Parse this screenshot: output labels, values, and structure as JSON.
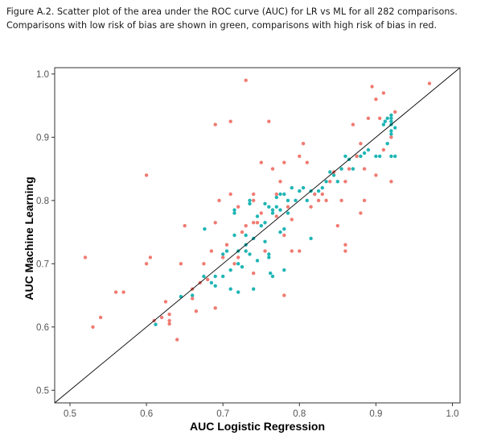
{
  "caption": {
    "line1": "Figure A.2. Scatter plot of the area under the ROC curve (AUC) for LR vs ML for all 282 comparisons.",
    "line2": "Comparisons with low risk of bias are shown in green, comparisons with high risk of bias in red."
  },
  "colors": {
    "low_risk": "#1fb5b5",
    "high_risk": "#f07b72",
    "diagonal": "#000000",
    "frame": "#333333"
  },
  "chart_data": {
    "type": "scatter",
    "xlabel": "AUC Logistic Regression",
    "ylabel": "AUC Machine Learning",
    "xlim": [
      0.48,
      1.01
    ],
    "ylim": [
      0.48,
      1.01
    ],
    "xticks": [
      0.5,
      0.6,
      0.7,
      0.8,
      0.9,
      1.0
    ],
    "xtick_labels": [
      "0.5",
      "0.6",
      "0.7",
      "0.8",
      "0.9",
      "1.0"
    ],
    "yticks": [
      0.5,
      0.6,
      0.7,
      0.8,
      0.9,
      1.0
    ],
    "ytick_labels": [
      "0.5",
      "0.6",
      "0.7",
      "0.8",
      "0.9",
      "1.0"
    ],
    "grid": false,
    "reference_line": "y = x",
    "series": [
      {
        "name": "Low risk of bias",
        "color": "#1fb5b5",
        "points": [
          [
            0.612,
            0.604
          ],
          [
            0.645,
            0.648
          ],
          [
            0.66,
            0.65
          ],
          [
            0.675,
            0.68
          ],
          [
            0.676,
            0.755
          ],
          [
            0.685,
            0.67
          ],
          [
            0.69,
            0.665
          ],
          [
            0.69,
            0.68
          ],
          [
            0.7,
            0.68
          ],
          [
            0.7,
            0.715
          ],
          [
            0.705,
            0.72
          ],
          [
            0.71,
            0.66
          ],
          [
            0.71,
            0.69
          ],
          [
            0.715,
            0.745
          ],
          [
            0.715,
            0.78
          ],
          [
            0.715,
            0.785
          ],
          [
            0.72,
            0.7
          ],
          [
            0.72,
            0.72
          ],
          [
            0.72,
            0.655
          ],
          [
            0.725,
            0.695
          ],
          [
            0.73,
            0.73
          ],
          [
            0.73,
            0.745
          ],
          [
            0.73,
            0.72
          ],
          [
            0.735,
            0.715
          ],
          [
            0.735,
            0.8
          ],
          [
            0.735,
            0.795
          ],
          [
            0.74,
            0.74
          ],
          [
            0.74,
            0.66
          ],
          [
            0.745,
            0.705
          ],
          [
            0.745,
            0.775
          ],
          [
            0.75,
            0.76
          ],
          [
            0.755,
            0.735
          ],
          [
            0.755,
            0.765
          ],
          [
            0.755,
            0.795
          ],
          [
            0.76,
            0.79
          ],
          [
            0.76,
            0.71
          ],
          [
            0.76,
            0.715
          ],
          [
            0.762,
            0.685
          ],
          [
            0.765,
            0.68
          ],
          [
            0.765,
            0.785
          ],
          [
            0.765,
            0.78
          ],
          [
            0.77,
            0.79
          ],
          [
            0.77,
            0.805
          ],
          [
            0.775,
            0.75
          ],
          [
            0.775,
            0.81
          ],
          [
            0.775,
            0.785
          ],
          [
            0.78,
            0.81
          ],
          [
            0.78,
            0.755
          ],
          [
            0.78,
            0.69
          ],
          [
            0.785,
            0.78
          ],
          [
            0.785,
            0.8
          ],
          [
            0.79,
            0.82
          ],
          [
            0.795,
            0.8
          ],
          [
            0.8,
            0.815
          ],
          [
            0.805,
            0.82
          ],
          [
            0.81,
            0.8
          ],
          [
            0.815,
            0.815
          ],
          [
            0.815,
            0.74
          ],
          [
            0.82,
            0.81
          ],
          [
            0.825,
            0.815
          ],
          [
            0.83,
            0.82
          ],
          [
            0.835,
            0.83
          ],
          [
            0.84,
            0.845
          ],
          [
            0.845,
            0.84
          ],
          [
            0.85,
            0.83
          ],
          [
            0.855,
            0.85
          ],
          [
            0.86,
            0.87
          ],
          [
            0.865,
            0.865
          ],
          [
            0.87,
            0.85
          ],
          [
            0.875,
            0.87
          ],
          [
            0.88,
            0.87
          ],
          [
            0.885,
            0.875
          ],
          [
            0.89,
            0.88
          ],
          [
            0.9,
            0.87
          ],
          [
            0.905,
            0.87
          ],
          [
            0.91,
            0.92
          ],
          [
            0.912,
            0.925
          ],
          [
            0.915,
            0.89
          ],
          [
            0.915,
            0.93
          ],
          [
            0.92,
            0.905
          ],
          [
            0.92,
            0.91
          ],
          [
            0.92,
            0.92
          ],
          [
            0.92,
            0.925
          ],
          [
            0.92,
            0.93
          ],
          [
            0.92,
            0.935
          ],
          [
            0.92,
            0.87
          ],
          [
            0.925,
            0.87
          ],
          [
            0.925,
            0.915
          ]
        ]
      },
      {
        "name": "High risk of bias",
        "color": "#f07b72",
        "points": [
          [
            0.52,
            0.71
          ],
          [
            0.53,
            0.6
          ],
          [
            0.54,
            0.615
          ],
          [
            0.56,
            0.655
          ],
          [
            0.57,
            0.655
          ],
          [
            0.6,
            0.84
          ],
          [
            0.6,
            0.7
          ],
          [
            0.605,
            0.71
          ],
          [
            0.61,
            0.61
          ],
          [
            0.62,
            0.615
          ],
          [
            0.625,
            0.64
          ],
          [
            0.63,
            0.605
          ],
          [
            0.63,
            0.62
          ],
          [
            0.63,
            0.61
          ],
          [
            0.64,
            0.58
          ],
          [
            0.645,
            0.7
          ],
          [
            0.65,
            0.76
          ],
          [
            0.66,
            0.645
          ],
          [
            0.66,
            0.66
          ],
          [
            0.665,
            0.625
          ],
          [
            0.67,
            0.67
          ],
          [
            0.675,
            0.7
          ],
          [
            0.68,
            0.675
          ],
          [
            0.685,
            0.72
          ],
          [
            0.69,
            0.92
          ],
          [
            0.69,
            0.63
          ],
          [
            0.695,
            0.8
          ],
          [
            0.7,
            0.71
          ],
          [
            0.705,
            0.73
          ],
          [
            0.71,
            0.925
          ],
          [
            0.71,
            0.81
          ],
          [
            0.715,
            0.7
          ],
          [
            0.72,
            0.71
          ],
          [
            0.725,
            0.75
          ],
          [
            0.73,
            0.76
          ],
          [
            0.74,
            0.765
          ],
          [
            0.74,
            0.685
          ],
          [
            0.745,
            0.765
          ],
          [
            0.75,
            0.78
          ],
          [
            0.755,
            0.72
          ],
          [
            0.76,
            0.925
          ],
          [
            0.765,
            0.85
          ],
          [
            0.77,
            0.775
          ],
          [
            0.775,
            0.83
          ],
          [
            0.78,
            0.745
          ],
          [
            0.785,
            0.79
          ],
          [
            0.79,
            0.77
          ],
          [
            0.79,
            0.72
          ],
          [
            0.8,
            0.72
          ],
          [
            0.805,
            0.89
          ],
          [
            0.81,
            0.86
          ],
          [
            0.815,
            0.79
          ],
          [
            0.82,
            0.81
          ],
          [
            0.825,
            0.8
          ],
          [
            0.83,
            0.81
          ],
          [
            0.835,
            0.8
          ],
          [
            0.84,
            0.83
          ],
          [
            0.845,
            0.845
          ],
          [
            0.85,
            0.76
          ],
          [
            0.855,
            0.8
          ],
          [
            0.86,
            0.83
          ],
          [
            0.865,
            0.85
          ],
          [
            0.87,
            0.92
          ],
          [
            0.875,
            0.87
          ],
          [
            0.88,
            0.89
          ],
          [
            0.885,
            0.85
          ],
          [
            0.885,
            0.8
          ],
          [
            0.89,
            0.93
          ],
          [
            0.895,
            0.98
          ],
          [
            0.9,
            0.96
          ],
          [
            0.905,
            0.93
          ],
          [
            0.91,
            0.97
          ],
          [
            0.92,
            0.9
          ],
          [
            0.925,
            0.94
          ],
          [
            0.97,
            0.985
          ],
          [
            0.73,
            0.99
          ],
          [
            0.77,
            0.81
          ],
          [
            0.88,
            0.78
          ],
          [
            0.78,
            0.65
          ],
          [
            0.86,
            0.73
          ],
          [
            0.86,
            0.72
          ],
          [
            0.9,
            0.84
          ],
          [
            0.91,
            0.88
          ],
          [
            0.92,
            0.83
          ],
          [
            0.72,
            0.79
          ],
          [
            0.74,
            0.8
          ],
          [
            0.75,
            0.86
          ],
          [
            0.69,
            0.765
          ],
          [
            0.74,
            0.81
          ],
          [
            0.78,
            0.86
          ],
          [
            0.8,
            0.87
          ]
        ]
      }
    ]
  }
}
